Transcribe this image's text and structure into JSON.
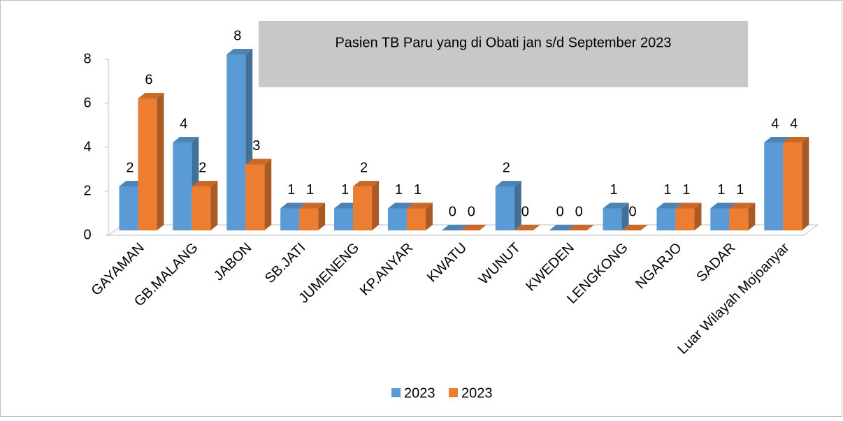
{
  "chart_data": {
    "type": "bar",
    "title": "Pasien TB Paru yang di Obati jan s/d September 2023",
    "categories": [
      "GAYAMAN",
      "GB.MALANG",
      "JABON",
      "SB.JATI",
      "JUMENENG",
      "KP.ANYAR",
      "KWATU",
      "WUNUT",
      "KWEDEN",
      "LENGKONG",
      "NGARJO",
      "SADAR",
      "Luar Wilayah Mojoanyar"
    ],
    "series": [
      {
        "name": "2023",
        "color": "#5b9bd5",
        "values": [
          2,
          4,
          8,
          1,
          1,
          1,
          0,
          2,
          0,
          1,
          1,
          1,
          4
        ]
      },
      {
        "name": "2023",
        "color": "#ed7d31",
        "values": [
          6,
          2,
          3,
          1,
          2,
          1,
          0,
          0,
          0,
          0,
          1,
          1,
          4
        ]
      }
    ],
    "ylim": [
      0,
      8
    ],
    "yticks": [
      0,
      2,
      4,
      6,
      8
    ],
    "grid": false,
    "legend": "bottom"
  }
}
